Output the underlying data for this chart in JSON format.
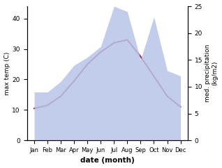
{
  "months": [
    "Jan",
    "Feb",
    "Mar",
    "Apr",
    "May",
    "Jun",
    "Jul",
    "Aug",
    "Sep",
    "Oct",
    "Nov",
    "Dec"
  ],
  "temp": [
    10.5,
    11.5,
    14.5,
    19.5,
    25.0,
    29.0,
    32.0,
    33.0,
    27.5,
    21.0,
    14.5,
    11.0
  ],
  "precip": [
    9.0,
    9.0,
    11.0,
    14.0,
    15.5,
    17.5,
    25.0,
    24.0,
    15.0,
    23.0,
    13.0,
    12.0
  ],
  "temp_color": "#993355",
  "precip_fill_color": "#b8c4e8",
  "ylabel_left": "max temp (C)",
  "ylabel_right": "med. precipitation\n(kg/m2)",
  "xlabel": "date (month)",
  "ylim_left": [
    0,
    44
  ],
  "ylim_right": [
    0,
    25
  ],
  "yticks_left": [
    0,
    10,
    20,
    30,
    40
  ],
  "yticks_right": [
    0,
    5,
    10,
    15,
    20,
    25
  ],
  "bg_color": "#ffffff",
  "line_width": 1.6
}
